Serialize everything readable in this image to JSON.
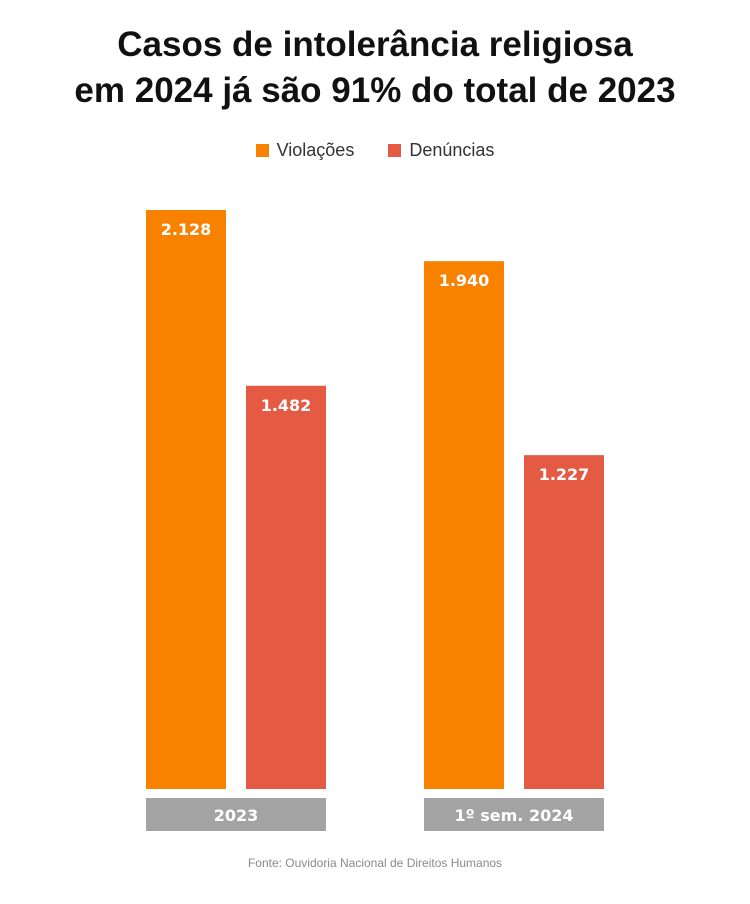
{
  "title": {
    "line1": "Casos de intolerância religiosa",
    "line2": "em 2024 já são 91% do total de 2023"
  },
  "legend": [
    {
      "label": "Violações",
      "color": "#F98100"
    },
    {
      "label": "Denúncias",
      "color": "#E55A43"
    }
  ],
  "chart_data": {
    "type": "bar",
    "title": "Casos de intolerância religiosa em 2024 já são 91% do total de 2023",
    "categories": [
      "2023",
      "1º sem. 2024"
    ],
    "series": [
      {
        "name": "Violações",
        "values": [
          2128,
          1940
        ],
        "labels": [
          "2.128",
          "1.940"
        ],
        "color": "#F98100"
      },
      {
        "name": "Denúncias",
        "values": [
          1482,
          1227
        ],
        "labels": [
          "1.482",
          "1.227"
        ],
        "color": "#E55A43"
      }
    ],
    "xlabel": "",
    "ylabel": "",
    "ylim": [
      0,
      2128
    ],
    "grid": false,
    "legend_position": "top-center",
    "category_label_bg": "#A3A3A3"
  },
  "source": "Fonte: Ouvidoria Nacional de Direitos Humanos"
}
